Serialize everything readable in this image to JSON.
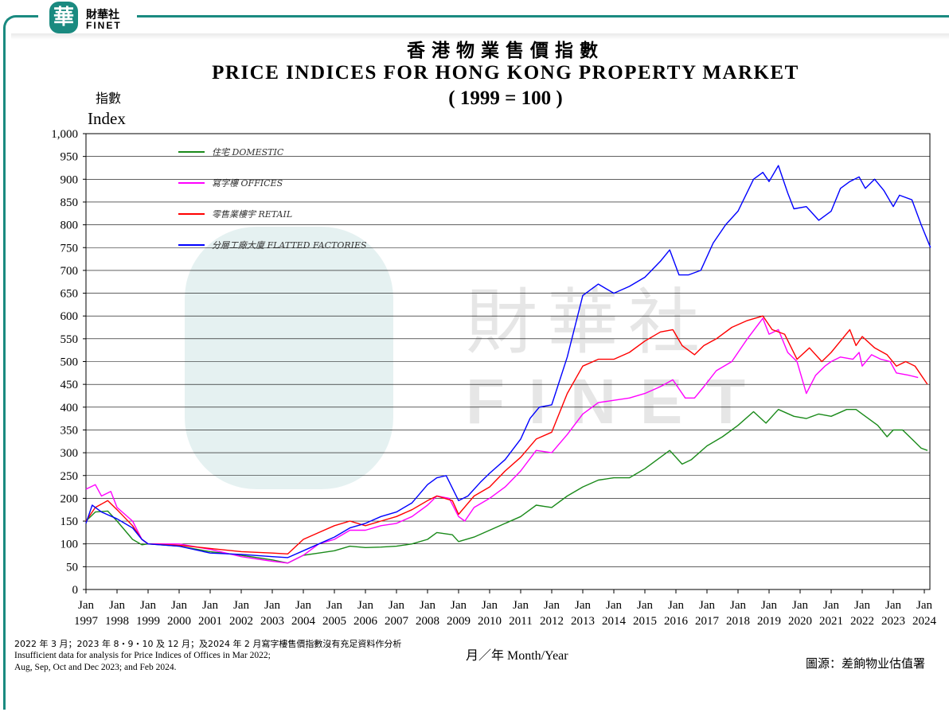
{
  "brand": {
    "logo_char": "華",
    "name_cn": "財華社",
    "name_en": "FINET",
    "color": "#1a8a80"
  },
  "chart_data": {
    "type": "line",
    "title_cn": "香港物業售價指數",
    "title": "PRICE INDICES FOR HONG KONG PROPERTY MARKET",
    "subtitle": "( 1999 = 100 )",
    "ylabel_cn": "指數",
    "ylabel": "Index",
    "xlabel": "月／年    Month/Year",
    "ylim": [
      0,
      1000
    ],
    "yticks": [
      0,
      50,
      100,
      150,
      200,
      250,
      300,
      350,
      400,
      450,
      500,
      550,
      600,
      650,
      700,
      750,
      800,
      850,
      900,
      950,
      1000
    ],
    "ytick_labels": [
      "0",
      "50",
      "100",
      "150",
      "200",
      "250",
      "300",
      "350",
      "400",
      "450",
      "500",
      "550",
      "600",
      "650",
      "700",
      "750",
      "800",
      "850",
      "900",
      "950",
      "1,000"
    ],
    "xlim": [
      1997,
      2024.2
    ],
    "xticks": [
      1997,
      1998,
      1999,
      2000,
      2001,
      2002,
      2003,
      2004,
      2005,
      2006,
      2007,
      2008,
      2009,
      2010,
      2011,
      2012,
      2013,
      2014,
      2015,
      2016,
      2017,
      2018,
      2019,
      2020,
      2021,
      2022,
      2023,
      2024
    ],
    "xtick_month": "Jan",
    "grid": true,
    "legend_position": "top-left",
    "series": [
      {
        "name": "住宅  DOMESTIC",
        "color": "#1a8a1a",
        "points": [
          [
            1997,
            150
          ],
          [
            1997.3,
            170
          ],
          [
            1997.7,
            172
          ],
          [
            1998,
            150
          ],
          [
            1998.5,
            110
          ],
          [
            1998.8,
            98
          ],
          [
            1999,
            100
          ],
          [
            2000,
            95
          ],
          [
            2001,
            83
          ],
          [
            2002,
            75
          ],
          [
            2003,
            65
          ],
          [
            2003.5,
            58
          ],
          [
            2004,
            75
          ],
          [
            2004.5,
            80
          ],
          [
            2005,
            85
          ],
          [
            2005.5,
            95
          ],
          [
            2006,
            92
          ],
          [
            2006.5,
            93
          ],
          [
            2007,
            95
          ],
          [
            2007.5,
            100
          ],
          [
            2008,
            110
          ],
          [
            2008.3,
            125
          ],
          [
            2008.8,
            120
          ],
          [
            2009,
            105
          ],
          [
            2009.5,
            115
          ],
          [
            2010,
            130
          ],
          [
            2010.5,
            145
          ],
          [
            2011,
            160
          ],
          [
            2011.5,
            185
          ],
          [
            2012,
            180
          ],
          [
            2012.5,
            205
          ],
          [
            2013,
            225
          ],
          [
            2013.5,
            240
          ],
          [
            2014,
            245
          ],
          [
            2014.5,
            245
          ],
          [
            2015,
            265
          ],
          [
            2015.5,
            290
          ],
          [
            2015.8,
            305
          ],
          [
            2016.2,
            275
          ],
          [
            2016.5,
            285
          ],
          [
            2017,
            315
          ],
          [
            2017.5,
            335
          ],
          [
            2018,
            360
          ],
          [
            2018.5,
            390
          ],
          [
            2018.9,
            365
          ],
          [
            2019.3,
            395
          ],
          [
            2019.8,
            380
          ],
          [
            2020.2,
            375
          ],
          [
            2020.6,
            385
          ],
          [
            2021,
            380
          ],
          [
            2021.5,
            395
          ],
          [
            2021.8,
            395
          ],
          [
            2022,
            385
          ],
          [
            2022.5,
            360
          ],
          [
            2022.8,
            335
          ],
          [
            2023,
            350
          ],
          [
            2023.3,
            350
          ],
          [
            2023.6,
            330
          ],
          [
            2023.9,
            310
          ],
          [
            2024.1,
            305
          ]
        ]
      },
      {
        "name": "寫字樓  OFFICES",
        "color": "#ff00ff",
        "points": [
          [
            1997,
            220
          ],
          [
            1997.3,
            230
          ],
          [
            1997.5,
            205
          ],
          [
            1997.8,
            215
          ],
          [
            1998,
            180
          ],
          [
            1998.5,
            150
          ],
          [
            1998.8,
            110
          ],
          [
            1999,
            100
          ],
          [
            2000,
            100
          ],
          [
            2001,
            88
          ],
          [
            2002,
            72
          ],
          [
            2003,
            62
          ],
          [
            2003.5,
            58
          ],
          [
            2004,
            75
          ],
          [
            2004.5,
            100
          ],
          [
            2005,
            110
          ],
          [
            2005.5,
            130
          ],
          [
            2006,
            130
          ],
          [
            2006.5,
            140
          ],
          [
            2007,
            145
          ],
          [
            2007.5,
            160
          ],
          [
            2008,
            185
          ],
          [
            2008.3,
            205
          ],
          [
            2008.7,
            200
          ],
          [
            2009,
            160
          ],
          [
            2009.2,
            150
          ],
          [
            2009.5,
            180
          ],
          [
            2010,
            200
          ],
          [
            2010.5,
            225
          ],
          [
            2011,
            260
          ],
          [
            2011.5,
            305
          ],
          [
            2012,
            300
          ],
          [
            2012.5,
            340
          ],
          [
            2013,
            385
          ],
          [
            2013.5,
            410
          ],
          [
            2014,
            415
          ],
          [
            2014.5,
            420
          ],
          [
            2015,
            430
          ],
          [
            2015.5,
            445
          ],
          [
            2015.9,
            460
          ],
          [
            2016.3,
            420
          ],
          [
            2016.6,
            420
          ],
          [
            2016.9,
            445
          ],
          [
            2017.3,
            480
          ],
          [
            2017.8,
            500
          ],
          [
            2018.3,
            550
          ],
          [
            2018.8,
            595
          ],
          [
            2019,
            560
          ],
          [
            2019.3,
            570
          ],
          [
            2019.6,
            520
          ],
          [
            2019.9,
            500
          ],
          [
            2020.2,
            430
          ],
          [
            2020.5,
            470
          ],
          [
            2020.8,
            490
          ],
          [
            2021,
            500
          ],
          [
            2021.3,
            510
          ],
          [
            2021.7,
            505
          ],
          [
            2021.9,
            520
          ],
          [
            2022,
            490
          ],
          [
            2022.3,
            515
          ],
          [
            2022.6,
            505
          ],
          [
            2022.9,
            500
          ],
          [
            2023.1,
            475
          ],
          [
            2023.5,
            470
          ],
          [
            2023.8,
            465
          ]
        ]
      },
      {
        "name": "零售業樓宇  RETAIL",
        "color": "#ff0000",
        "points": [
          [
            1997,
            150
          ],
          [
            1997.3,
            180
          ],
          [
            1997.7,
            195
          ],
          [
            1998,
            175
          ],
          [
            1998.5,
            140
          ],
          [
            1998.8,
            110
          ],
          [
            1999,
            100
          ],
          [
            2000,
            97
          ],
          [
            2001,
            90
          ],
          [
            2002,
            83
          ],
          [
            2003,
            80
          ],
          [
            2003.5,
            78
          ],
          [
            2004,
            110
          ],
          [
            2004.5,
            125
          ],
          [
            2005,
            140
          ],
          [
            2005.5,
            150
          ],
          [
            2006,
            140
          ],
          [
            2006.5,
            150
          ],
          [
            2007,
            160
          ],
          [
            2007.5,
            175
          ],
          [
            2008,
            195
          ],
          [
            2008.3,
            205
          ],
          [
            2008.8,
            195
          ],
          [
            2009,
            165
          ],
          [
            2009.5,
            205
          ],
          [
            2010,
            225
          ],
          [
            2010.5,
            260
          ],
          [
            2011,
            290
          ],
          [
            2011.5,
            330
          ],
          [
            2012,
            345
          ],
          [
            2012.5,
            430
          ],
          [
            2013,
            490
          ],
          [
            2013.5,
            505
          ],
          [
            2014,
            505
          ],
          [
            2014.5,
            520
          ],
          [
            2015,
            545
          ],
          [
            2015.5,
            565
          ],
          [
            2015.9,
            570
          ],
          [
            2016.2,
            535
          ],
          [
            2016.6,
            515
          ],
          [
            2016.9,
            535
          ],
          [
            2017.3,
            550
          ],
          [
            2017.8,
            575
          ],
          [
            2018.3,
            590
          ],
          [
            2018.8,
            600
          ],
          [
            2019.1,
            570
          ],
          [
            2019.5,
            560
          ],
          [
            2019.9,
            505
          ],
          [
            2020.3,
            530
          ],
          [
            2020.7,
            500
          ],
          [
            2021,
            520
          ],
          [
            2021.3,
            545
          ],
          [
            2021.6,
            570
          ],
          [
            2021.8,
            535
          ],
          [
            2022,
            555
          ],
          [
            2022.4,
            530
          ],
          [
            2022.8,
            515
          ],
          [
            2023.1,
            490
          ],
          [
            2023.4,
            500
          ],
          [
            2023.7,
            490
          ],
          [
            2024.1,
            450
          ]
        ]
      },
      {
        "name": "分層工廠大廈  FLATTED FACTORIES",
        "color": "#0000ff",
        "points": [
          [
            1997,
            145
          ],
          [
            1997.2,
            185
          ],
          [
            1997.5,
            170
          ],
          [
            1998,
            155
          ],
          [
            1998.5,
            135
          ],
          [
            1998.8,
            110
          ],
          [
            1999,
            100
          ],
          [
            2000,
            95
          ],
          [
            2001,
            80
          ],
          [
            2002,
            77
          ],
          [
            2003,
            72
          ],
          [
            2003.5,
            70
          ],
          [
            2004,
            85
          ],
          [
            2004.5,
            100
          ],
          [
            2005,
            115
          ],
          [
            2005.5,
            135
          ],
          [
            2006,
            145
          ],
          [
            2006.5,
            160
          ],
          [
            2007,
            170
          ],
          [
            2007.5,
            190
          ],
          [
            2008,
            230
          ],
          [
            2008.3,
            245
          ],
          [
            2008.6,
            250
          ],
          [
            2009,
            195
          ],
          [
            2009.3,
            205
          ],
          [
            2009.7,
            235
          ],
          [
            2010,
            255
          ],
          [
            2010.5,
            285
          ],
          [
            2011,
            330
          ],
          [
            2011.3,
            375
          ],
          [
            2011.6,
            400
          ],
          [
            2012,
            405
          ],
          [
            2012.5,
            510
          ],
          [
            2013,
            645
          ],
          [
            2013.5,
            670
          ],
          [
            2014,
            650
          ],
          [
            2014.5,
            665
          ],
          [
            2015,
            685
          ],
          [
            2015.5,
            720
          ],
          [
            2015.8,
            745
          ],
          [
            2016.1,
            690
          ],
          [
            2016.4,
            690
          ],
          [
            2016.8,
            700
          ],
          [
            2017.2,
            760
          ],
          [
            2017.6,
            800
          ],
          [
            2018,
            830
          ],
          [
            2018.5,
            900
          ],
          [
            2018.8,
            915
          ],
          [
            2019,
            895
          ],
          [
            2019.3,
            930
          ],
          [
            2019.6,
            870
          ],
          [
            2019.8,
            835
          ],
          [
            2020.2,
            840
          ],
          [
            2020.6,
            810
          ],
          [
            2021,
            830
          ],
          [
            2021.3,
            880
          ],
          [
            2021.6,
            895
          ],
          [
            2021.9,
            905
          ],
          [
            2022.1,
            880
          ],
          [
            2022.4,
            900
          ],
          [
            2022.7,
            875
          ],
          [
            2023,
            840
          ],
          [
            2023.2,
            865
          ],
          [
            2023.6,
            855
          ],
          [
            2023.9,
            800
          ],
          [
            2024.2,
            750
          ]
        ]
      }
    ]
  },
  "footnote": {
    "cn": "2022 年 3 月；2023 年 8・9・10 及 12 月；及2024 年 2 月寫字樓售價指數沒有充足資料作分析",
    "en1": "Insufficient data for analysis for Price Indices of Offices in Mar 2022;",
    "en2": "Aug, Sep, Oct and Dec 2023; and Feb 2024."
  },
  "source": "圖源：差餉物业估值署",
  "watermark": {
    "cn": "財華社",
    "en": "FINET"
  }
}
